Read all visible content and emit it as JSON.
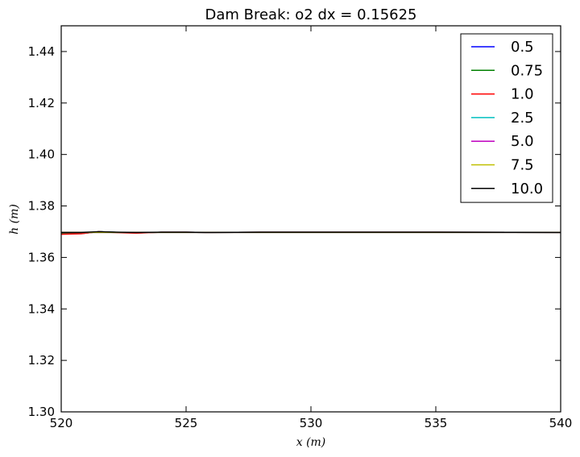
{
  "chart_data": {
    "type": "line",
    "title": "Dam Break: o2 dx = 0.15625",
    "xlabel": "x (m)",
    "ylabel": "h (m)",
    "xlim": [
      520,
      540
    ],
    "ylim": [
      1.3,
      1.45
    ],
    "xticks": [
      "520",
      "525",
      "530",
      "535",
      "540"
    ],
    "yticks": [
      "1.30",
      "1.32",
      "1.34",
      "1.36",
      "1.38",
      "1.40",
      "1.42",
      "1.44"
    ],
    "grid": false,
    "legend_position": "top-right",
    "series": [
      {
        "name": "0.5",
        "color": "#0000ff",
        "x": [
          520,
          520.8,
          521.5,
          522.3,
          523.0,
          524.0,
          525.0,
          526.0,
          528.0,
          530.0,
          535.0,
          540.0
        ],
        "y": [
          1.3692,
          1.3693,
          1.37,
          1.3697,
          1.3695,
          1.3698,
          1.3698,
          1.3697,
          1.3698,
          1.3698,
          1.3698,
          1.3697
        ]
      },
      {
        "name": "0.75",
        "color": "#008000",
        "x": [
          520,
          520.8,
          521.5,
          522.3,
          523.0,
          524.0,
          525.0,
          526.0,
          528.0,
          530.0,
          535.0,
          540.0
        ],
        "y": [
          1.3692,
          1.3693,
          1.37,
          1.3697,
          1.3695,
          1.3698,
          1.3698,
          1.3697,
          1.3698,
          1.3698,
          1.3698,
          1.3697
        ]
      },
      {
        "name": "1.0",
        "color": "#ff0000",
        "x": [
          520,
          520.8,
          521.5,
          522.3,
          523.0,
          524.0,
          525.0,
          526.0,
          528.0,
          530.0,
          535.0,
          540.0
        ],
        "y": [
          1.369,
          1.3692,
          1.37,
          1.3696,
          1.3694,
          1.3698,
          1.3698,
          1.3697,
          1.3698,
          1.3698,
          1.3698,
          1.3697
        ]
      },
      {
        "name": "2.5",
        "color": "#00bfbf",
        "x": [
          520,
          540
        ],
        "y": [
          1.3697,
          1.3697
        ]
      },
      {
        "name": "5.0",
        "color": "#bf00bf",
        "x": [
          520,
          540
        ],
        "y": [
          1.3697,
          1.3697
        ]
      },
      {
        "name": "7.5",
        "color": "#bfbf00",
        "x": [
          520,
          540
        ],
        "y": [
          1.3697,
          1.3697
        ]
      },
      {
        "name": "10.0",
        "color": "#000000",
        "x": [
          520,
          520.8,
          521.5,
          522.3,
          523.0,
          524.0,
          525.0,
          526.0,
          528.0,
          530.0,
          535.0,
          540.0
        ],
        "y": [
          1.3697,
          1.3697,
          1.37,
          1.3698,
          1.3697,
          1.3698,
          1.3698,
          1.3697,
          1.3698,
          1.3698,
          1.3698,
          1.3697
        ]
      }
    ]
  }
}
